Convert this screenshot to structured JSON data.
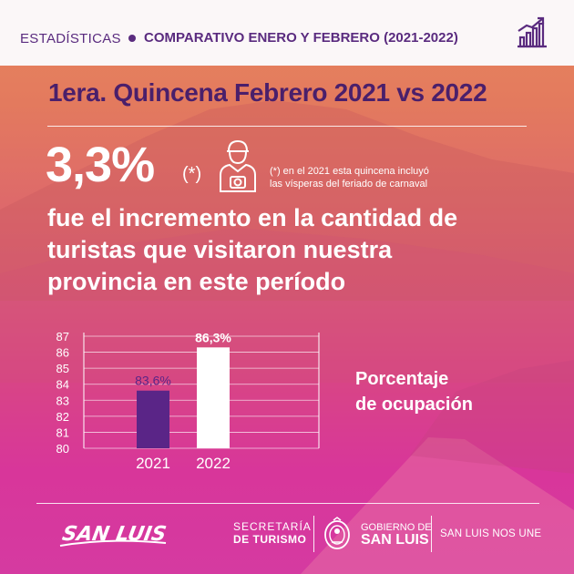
{
  "header": {
    "section": "ESTADÍSTICAS",
    "title": "COMPARATIVO ENERO Y FEBRERO (2021-2022)",
    "icon": "bar-chart-growth-icon"
  },
  "subtitle": "1era. Quincena Febrero 2021 vs 2022",
  "headline": {
    "percent": "3,3%",
    "asterisk": "(*)",
    "icon": "tourist-camera-icon",
    "note_line1": "(*) en el 2021 esta quincena incluyó",
    "note_line2": "las vísperas del feriado de carnaval",
    "desc_line1": "fue el incremento en la cantidad de",
    "desc_line2": "turistas que visitaron nuestra",
    "desc_line3": "provincia en este período"
  },
  "chart_data": {
    "type": "bar",
    "categories": [
      "2021",
      "2022"
    ],
    "values": [
      83.6,
      86.3
    ],
    "data_labels": [
      "83,6%",
      "86,3%"
    ],
    "ylim": [
      80,
      87
    ],
    "yticks": [
      80,
      81,
      82,
      83,
      84,
      85,
      86,
      87
    ],
    "colors": [
      "#5a2587",
      "#ffffff"
    ],
    "label_colors": [
      "#5a2587",
      "#ffffff"
    ],
    "grid": true
  },
  "legend": {
    "line1": "Porcentaje",
    "line2": "de ocupación"
  },
  "footer": {
    "logo_text": "SAN LUIS",
    "sec_line1": "SECRETARÍA",
    "sec_line2": "DE TURISMO",
    "shield_icon": "province-shield-icon",
    "gob_line1": "GOBIERNO DE",
    "gob_line2": "SAN LUIS",
    "slogan": "SAN LUIS NOS UNE"
  },
  "colors": {
    "purple": "#5a2b7f",
    "dark_purple": "#4a1f6b",
    "white": "#ffffff"
  }
}
